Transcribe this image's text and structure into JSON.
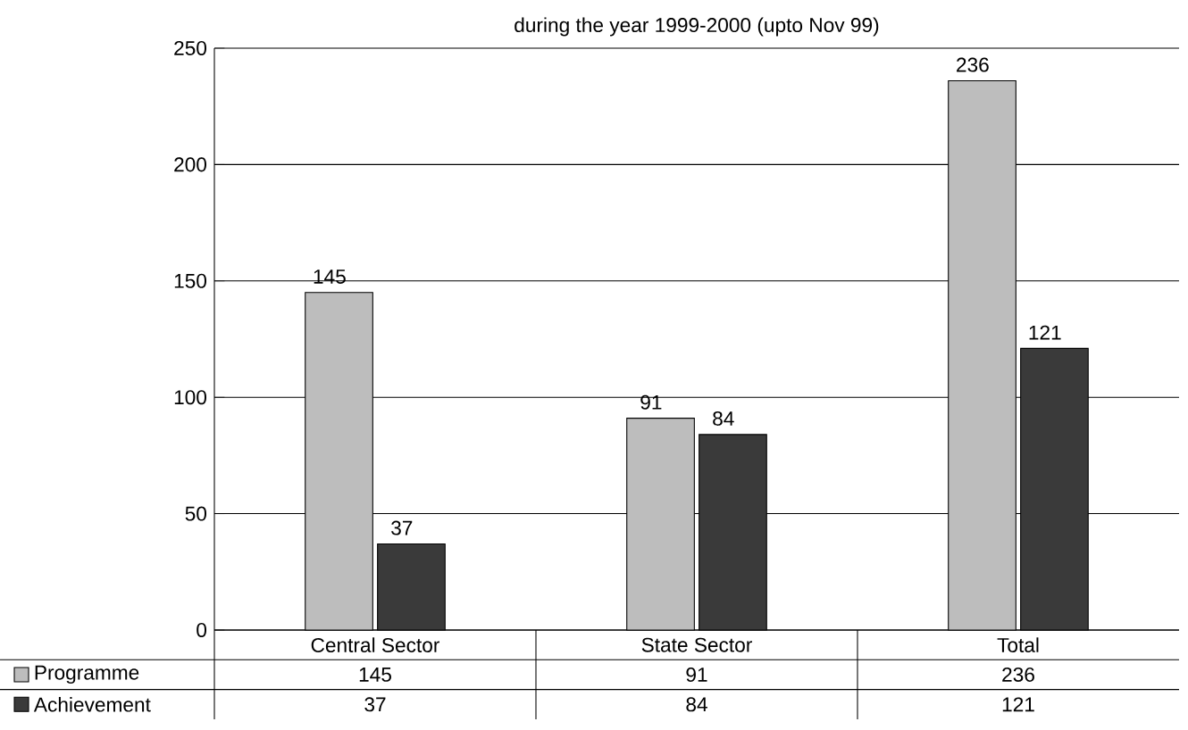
{
  "chart_data": {
    "type": "bar",
    "title": "during the year 1999-2000 (upto Nov 99)",
    "categories": [
      "Central Sector",
      "State Sector",
      "Total"
    ],
    "series": [
      {
        "name": "Programme",
        "color": "#bdbdbd",
        "values": [
          145,
          91,
          236
        ],
        "value_labels": [
          "145",
          "91",
          "236"
        ]
      },
      {
        "name": "Achievement",
        "color": "#3a3a3a",
        "values": [
          37,
          84,
          121
        ],
        "value_labels": [
          "37",
          "84",
          "121"
        ]
      }
    ],
    "ylim": [
      0,
      250
    ],
    "yticks": [
      0,
      50,
      100,
      150,
      200,
      250
    ],
    "grid": "y",
    "legend": "bottom left"
  }
}
